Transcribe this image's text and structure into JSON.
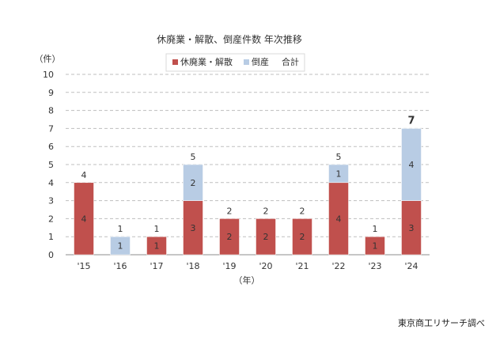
{
  "chart_data": {
    "type": "bar",
    "stacked": true,
    "title": "休廃業・解散、倒産件数 年次推移",
    "ylabel": "（件）",
    "xlabel": "（年）",
    "ylim": [
      0,
      10
    ],
    "yticks": [
      0,
      1,
      2,
      3,
      4,
      5,
      6,
      7,
      8,
      9,
      10
    ],
    "grid": true,
    "legend_position": "top",
    "categories": [
      "'15",
      "'16",
      "'17",
      "'18",
      "'19",
      "'20",
      "'21",
      "'22",
      "'23",
      "'24"
    ],
    "series": [
      {
        "name": "休廃業・解散",
        "color": "#c0504d",
        "values": [
          4,
          0,
          1,
          3,
          2,
          2,
          2,
          4,
          1,
          3
        ]
      },
      {
        "name": "倒産",
        "color": "#b8cce4",
        "values": [
          0,
          1,
          0,
          2,
          0,
          0,
          0,
          1,
          0,
          4
        ]
      }
    ],
    "totals_label": "合計",
    "totals": [
      4,
      1,
      1,
      5,
      2,
      2,
      2,
      5,
      1,
      7
    ]
  },
  "source": "東京商工リサーチ調べ"
}
